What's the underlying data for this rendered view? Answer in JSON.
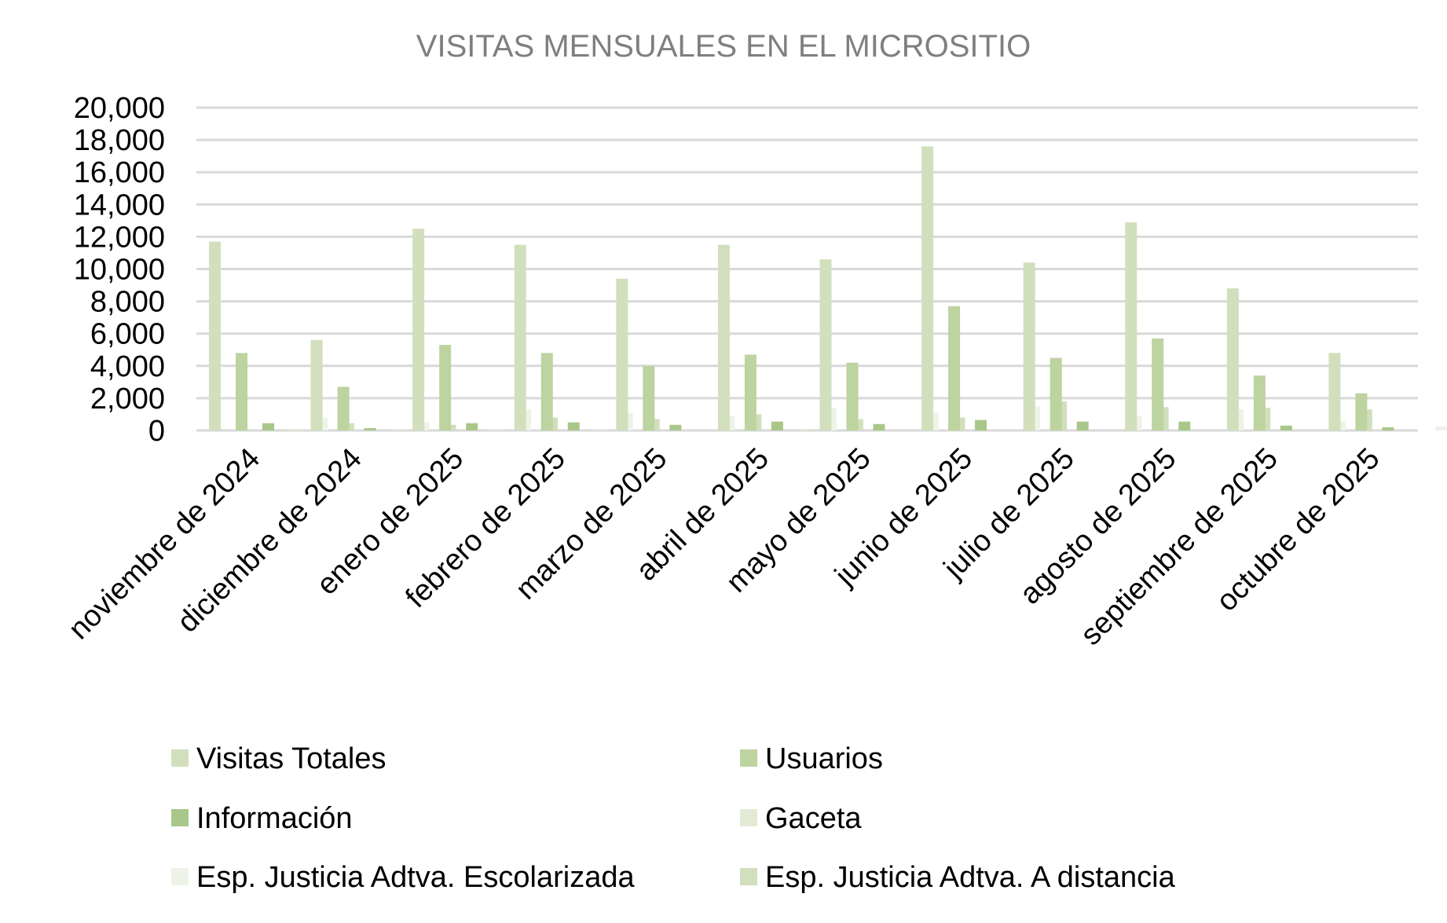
{
  "chart_data": {
    "type": "bar",
    "title": "VISITAS MENSUALES EN EL MICROSITIO",
    "xlabel": "",
    "ylabel": "",
    "ylim": [
      0,
      20000
    ],
    "yticks": [
      "0",
      "2,000",
      "4,000",
      "6,000",
      "8,000",
      "10,000",
      "12,000",
      "14,000",
      "16,000",
      "18,000",
      "20,000"
    ],
    "grid": true,
    "legend_position": "bottom",
    "categories": [
      "noviembre de 2024",
      "diciembre de 2024",
      "enero de 2025",
      "febrero de 2025",
      "marzo de  2025",
      "abril de 2025",
      "mayo de 2025",
      "junio de 2025",
      "julio de 2025",
      "agosto de 2025",
      "septiembre de 2025",
      "octubre de 2025"
    ],
    "series": [
      {
        "name": "Visitas Totales",
        "color": "#d2dfbc",
        "values": [
          11700,
          5600,
          12500,
          11500,
          9400,
          11500,
          10600,
          17600,
          10400,
          12900,
          8800,
          4800
        ]
      },
      {
        "name": "Usuarios",
        "color": "#bdd3a0",
        "values": [
          4800,
          2700,
          5300,
          4800,
          4000,
          4700,
          4200,
          7700,
          4500,
          5700,
          3400,
          2300
        ]
      },
      {
        "name": "Información",
        "color": "#a9c78a",
        "values": [
          450,
          150,
          450,
          500,
          350,
          550,
          400,
          650,
          550,
          550,
          300,
          200
        ]
      },
      {
        "name": "Gaceta",
        "color": "#e3ebd6",
        "values": [
          100,
          50,
          50,
          50,
          0,
          100,
          0,
          0,
          0,
          0,
          0,
          0
        ]
      },
      {
        "name": "Esp. Justicia Adtva. Escolarizada",
        "color": "#eef3e7",
        "values": [
          800,
          500,
          1300,
          1100,
          900,
          1400,
          1100,
          1500,
          900,
          1300,
          600,
          250
        ]
      },
      {
        "name": "Esp. Justicia Adtva. A distancia",
        "color": "#d2dfbc",
        "values": [
          450,
          350,
          800,
          700,
          1000,
          700,
          800,
          1800,
          1450,
          1400,
          1300,
          750
        ]
      }
    ]
  }
}
